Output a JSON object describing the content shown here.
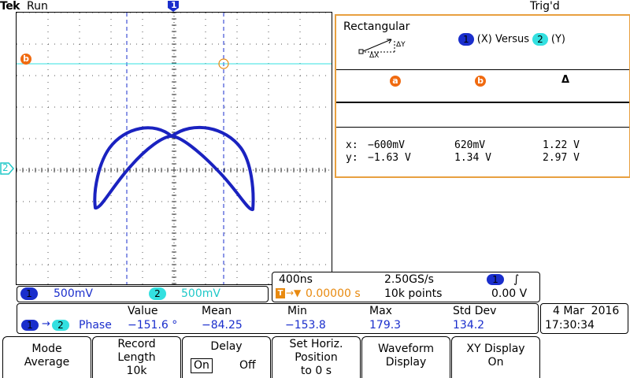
{
  "status": {
    "brand": "Tek",
    "run_state": "Run",
    "trigger_state": "Trig'd"
  },
  "markers": {
    "ch1_top": "1",
    "cursor_b": "b",
    "ch2_left": "2"
  },
  "cursor_panel": {
    "mode": "Rectangular",
    "dx_label": "ΔX",
    "dy_label": "ΔY",
    "source_x_badge": "1",
    "source_x_text": "(X) Versus",
    "source_y_badge": "2",
    "source_y_text": "(Y)",
    "col_a": "a",
    "col_b": "b",
    "col_delta": "Δ",
    "rows": [
      {
        "label": "x:",
        "a": "−600mV",
        "b": "620mV",
        "delta": "1.22 V"
      },
      {
        "label": "y:",
        "a": "−1.63 V",
        "b": "1.34 V",
        "delta": "2.97 V"
      }
    ]
  },
  "channels": {
    "ch1_badge": "1",
    "ch1_scale": "500mV",
    "ch2_badge": "2",
    "ch2_scale": "500mV"
  },
  "timebase": {
    "time_div": "400ns",
    "sample_rate": "2.50GS/s",
    "trig_badge": "1",
    "trig_slope": "∫",
    "position_icon": "T",
    "position_arrow": "→▼",
    "position": "0.00000 s",
    "record": "10k points",
    "trig_level": "0.00 V"
  },
  "measurement": {
    "headers": {
      "value": "Value",
      "mean": "Mean",
      "min": "Min",
      "max": "Max",
      "std": "Std Dev"
    },
    "src1": "1",
    "arrow": "→",
    "src2": "2",
    "name": "Phase",
    "value": "−151.6 °",
    "mean": "−84.25",
    "min": "−153.8",
    "max": "179.3",
    "std": "134.2"
  },
  "clock": {
    "date": "4 Mar  2016",
    "time": "17:30:34"
  },
  "menu": [
    {
      "line1": "Mode",
      "line2": "Average"
    },
    {
      "line1": "Record",
      "line2": "Length",
      "line3": "10k"
    },
    {
      "line1": "Delay",
      "on": "On",
      "off": "Off"
    },
    {
      "line1": "Set Horiz.",
      "line2": "Position",
      "line3": "to 0 s"
    },
    {
      "line1": "Waveform",
      "line2": "Display"
    },
    {
      "line1": "XY Display",
      "line2": "On"
    }
  ],
  "colors": {
    "ch1": "#1a2ecc",
    "ch2": "#33e0e0",
    "cursor": "#e88a10",
    "trace": "#1a22c0"
  }
}
